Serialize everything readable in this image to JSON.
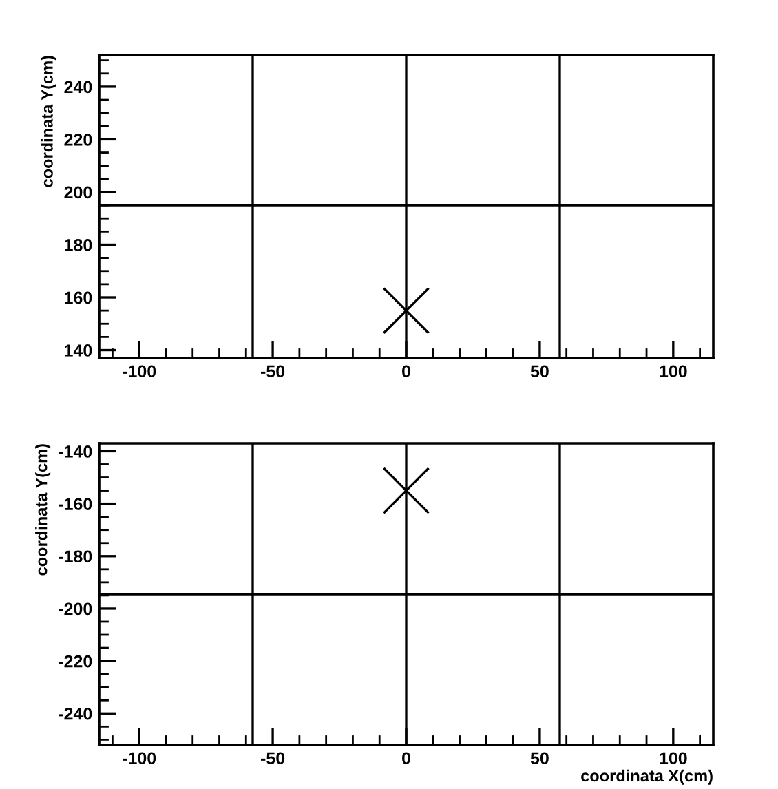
{
  "chart_data": [
    {
      "type": "scatter",
      "ylabel": "coordinata Y(cm)",
      "x": [
        0
      ],
      "series": [
        {
          "color": "#000000",
          "values": [
            155
          ]
        }
      ],
      "marker": "cross",
      "xlim": [
        -115,
        115
      ],
      "xticks": [
        -100,
        -50,
        0,
        50,
        100
      ],
      "ylim": [
        137,
        252
      ],
      "yticks": [
        140,
        160,
        180,
        200,
        220,
        240
      ],
      "ref_lines": [
        {
          "axis": "x",
          "value": -57.5,
          "color": "#000000"
        },
        {
          "axis": "x",
          "value": 0,
          "color": "#000000"
        },
        {
          "axis": "x",
          "value": 57.5,
          "color": "#000000"
        },
        {
          "axis": "y",
          "value": 195,
          "color": "#000000"
        }
      ]
    },
    {
      "type": "scatter",
      "xlabel": "coordinata X(cm)",
      "ylabel": "coordinata Y(cm)",
      "x": [
        0
      ],
      "series": [
        {
          "color": "#000000",
          "values": [
            -155
          ]
        }
      ],
      "marker": "cross",
      "xlim": [
        -115,
        115
      ],
      "xticks": [
        -100,
        -50,
        0,
        50,
        100
      ],
      "ylim": [
        -252,
        -137
      ],
      "yticks": [
        -240,
        -220,
        -200,
        -180,
        -160,
        -140
      ],
      "ref_lines": [
        {
          "axis": "x",
          "value": -57.5,
          "color": "#000000"
        },
        {
          "axis": "x",
          "value": 0,
          "color": "#000000"
        },
        {
          "axis": "x",
          "value": 57.5,
          "color": "#000000"
        },
        {
          "axis": "y",
          "value": -194.5,
          "color": "#000000"
        }
      ]
    }
  ]
}
